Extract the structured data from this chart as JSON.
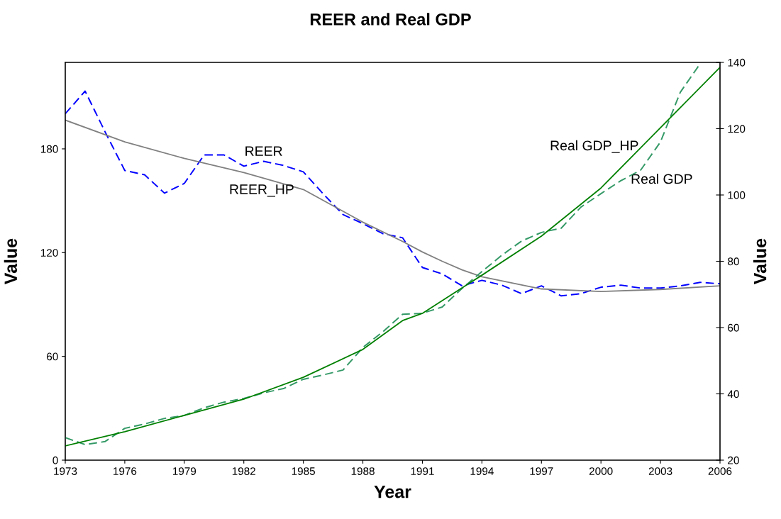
{
  "chart_data": {
    "type": "line",
    "title": "REER and Real GDP",
    "xlabel": "Year",
    "ylabel": "Value",
    "y2label": "Value",
    "xlim": [
      1973,
      2006
    ],
    "xticks": [
      1973,
      1976,
      1979,
      1982,
      1985,
      1988,
      1991,
      1994,
      1997,
      2000,
      2003,
      2006
    ],
    "ylim": [
      0,
      230
    ],
    "yticks": [
      0,
      60,
      120,
      180
    ],
    "y2lim": [
      20,
      140
    ],
    "y2ticks": [
      20,
      40,
      60,
      80,
      100,
      120,
      140
    ],
    "grid": false,
    "legend": false,
    "marker": "none",
    "series": [
      {
        "name": "REER",
        "color": "#0000ff",
        "line_style": "dashed",
        "x": [
          1973,
          1974,
          1975,
          1976,
          1977,
          1978,
          1979,
          1980,
          1981,
          1982,
          1983,
          1984,
          1985,
          1986,
          1987,
          1988,
          1989,
          1990,
          1991,
          1992,
          1993,
          1994,
          1995,
          1996,
          1997,
          1998,
          1999,
          2000,
          2001,
          2002,
          2003,
          2004,
          2005,
          2006
        ],
        "values": [
          200.3,
          213.4,
          190,
          167.5,
          165,
          154.4,
          160,
          176.5,
          176.5,
          170,
          172.8,
          170.4,
          166.7,
          154,
          142,
          136.8,
          131,
          128.6,
          111.4,
          107.7,
          100.8,
          104,
          101.2,
          96.3,
          100.8,
          95,
          96.3,
          100,
          101.2,
          99.5,
          99.5,
          100.8,
          102.8,
          102
        ]
      },
      {
        "name": "REER_HP",
        "color": "#808080",
        "line_style": "solid",
        "x": [
          1973,
          1976,
          1979,
          1982,
          1985,
          1988,
          1990,
          1991,
          1992,
          1993,
          1994,
          1997,
          2000,
          2003,
          2006
        ],
        "values": [
          196.6,
          184,
          174.5,
          166.3,
          156.5,
          137.6,
          126.5,
          120.4,
          115,
          110,
          106,
          99,
          97.5,
          98.7,
          100.8
        ]
      },
      {
        "name": "Real GDP",
        "color": "#339966",
        "line_style": "dashed",
        "axis": "y2",
        "x": [
          1973,
          1974,
          1975,
          1976,
          1977,
          1978,
          1979,
          1980,
          1981,
          1982,
          1983,
          1984,
          1985,
          1986,
          1987,
          1988,
          1989,
          1990,
          1991,
          1992,
          1993,
          1994,
          1995,
          1996,
          1997,
          1998,
          1999,
          2000,
          2001,
          2002,
          2003,
          2004,
          2005
        ],
        "values": [
          26.8,
          24.7,
          25.6,
          29.6,
          30.9,
          32.6,
          33.5,
          35.8,
          37.5,
          38.6,
          40.3,
          41.6,
          44.4,
          45.7,
          47.2,
          54,
          58.7,
          64,
          64.3,
          66.2,
          71.8,
          76.9,
          81.8,
          86.1,
          88.7,
          90,
          96.4,
          100.4,
          104.3,
          107.5,
          116,
          131,
          139.6
        ]
      },
      {
        "name": "Real GDP_HP",
        "color": "#008000",
        "line_style": "solid",
        "axis": "y2",
        "x": [
          1973,
          1976,
          1979,
          1982,
          1985,
          1988,
          1990,
          1991,
          1993,
          1994,
          1997,
          2000,
          2003,
          2006
        ],
        "values": [
          24.3,
          28.6,
          33.5,
          38.4,
          45,
          53.4,
          62.1,
          64.3,
          72,
          75.8,
          87.6,
          102.1,
          120.3,
          138.5
        ]
      }
    ]
  }
}
